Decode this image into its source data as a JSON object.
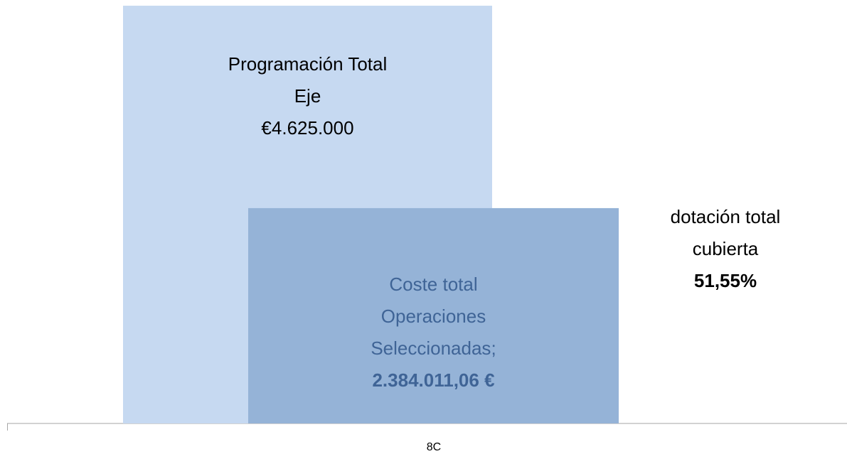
{
  "chart_data": {
    "type": "overlap-bar",
    "categories": [
      "8C"
    ],
    "series": [
      {
        "name": "Programación Total Eje",
        "color": "#c6d9f1",
        "text_color": "#000000",
        "values": [
          4625000
        ],
        "value_labels": [
          "€4.625.000"
        ]
      },
      {
        "name": "Coste total Operaciones Seleccionadas",
        "color": "#95b3d7",
        "text_color": "#3f6496",
        "values": [
          2384011.06
        ],
        "value_labels": [
          "2.384.011,06 €"
        ],
        "label_separator": ";"
      }
    ],
    "ylim": [
      0,
      4700000
    ],
    "annotation": {
      "text": "dotación total cubierta",
      "value": 51.55,
      "value_label": "51,55%"
    }
  }
}
